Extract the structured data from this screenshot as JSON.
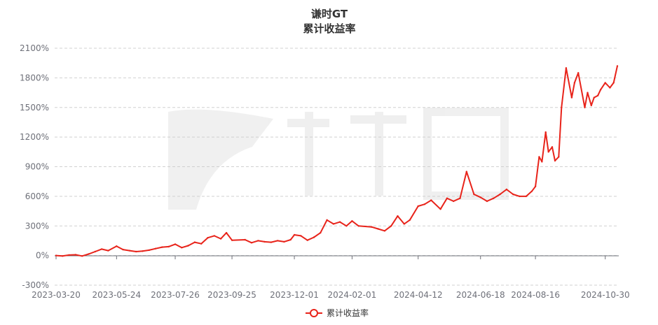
{
  "chart_data": {
    "type": "line",
    "title": "谦时GT",
    "subtitle": "累计收益率",
    "y_axis": {
      "min": -300,
      "max": 2100,
      "interval": 300,
      "ticks": [
        "-300%",
        "0%",
        "300%",
        "600%",
        "900%",
        "1200%",
        "1500%",
        "1800%",
        "2100%"
      ],
      "grid": "dashed"
    },
    "x_axis": {
      "ticks": [
        "2023-03-20",
        "2023-05-24",
        "2023-07-26",
        "2023-09-25",
        "2023-12-01",
        "2024-02-01",
        "2024-04-12",
        "2024-06-18",
        "2024-08-16",
        "2024-10-30"
      ]
    },
    "legend": {
      "position": "bottom-center"
    },
    "series": [
      {
        "name": "累计收益率",
        "color": "#e8231a",
        "x": [
          "2023-03-20",
          "2023-03-27",
          "2023-04-03",
          "2023-04-10",
          "2023-04-17",
          "2023-04-24",
          "2023-05-01",
          "2023-05-08",
          "2023-05-15",
          "2023-05-24",
          "2023-05-31",
          "2023-06-07",
          "2023-06-14",
          "2023-06-21",
          "2023-06-28",
          "2023-07-05",
          "2023-07-12",
          "2023-07-19",
          "2023-07-26",
          "2023-08-02",
          "2023-08-09",
          "2023-08-16",
          "2023-08-23",
          "2023-08-30",
          "2023-09-06",
          "2023-09-13",
          "2023-09-19",
          "2023-09-25",
          "2023-10-09",
          "2023-10-16",
          "2023-10-23",
          "2023-10-30",
          "2023-11-06",
          "2023-11-13",
          "2023-11-20",
          "2023-11-27",
          "2023-12-01",
          "2023-12-08",
          "2023-12-15",
          "2023-12-22",
          "2023-12-29",
          "2024-01-05",
          "2024-01-12",
          "2024-01-19",
          "2024-01-26",
          "2024-02-01",
          "2024-02-08",
          "2024-02-22",
          "2024-02-29",
          "2024-03-07",
          "2024-03-14",
          "2024-03-21",
          "2024-03-28",
          "2024-04-03",
          "2024-04-12",
          "2024-04-19",
          "2024-04-26",
          "2024-05-06",
          "2024-05-13",
          "2024-05-20",
          "2024-05-27",
          "2024-06-03",
          "2024-06-11",
          "2024-06-18",
          "2024-06-25",
          "2024-07-02",
          "2024-07-09",
          "2024-07-16",
          "2024-07-23",
          "2024-07-30",
          "2024-08-06",
          "2024-08-12",
          "2024-08-16",
          "2024-08-20",
          "2024-08-23",
          "2024-08-27",
          "2024-08-30",
          "2024-09-03",
          "2024-09-06",
          "2024-09-10",
          "2024-09-13",
          "2024-09-18",
          "2024-09-24",
          "2024-09-27",
          "2024-10-01",
          "2024-10-08",
          "2024-10-11",
          "2024-10-15",
          "2024-10-18",
          "2024-10-22",
          "2024-10-25",
          "2024-10-30",
          "2024-11-04",
          "2024-11-08",
          "2024-11-12"
        ],
        "values": [
          0,
          -5,
          5,
          8,
          -5,
          15,
          40,
          65,
          50,
          95,
          60,
          50,
          40,
          45,
          55,
          70,
          85,
          90,
          115,
          80,
          100,
          135,
          120,
          180,
          200,
          170,
          230,
          155,
          160,
          130,
          150,
          140,
          135,
          150,
          140,
          160,
          210,
          200,
          155,
          185,
          230,
          360,
          320,
          340,
          300,
          350,
          300,
          290,
          270,
          250,
          300,
          400,
          320,
          360,
          500,
          520,
          560,
          470,
          580,
          550,
          580,
          850,
          620,
          590,
          550,
          580,
          620,
          670,
          620,
          600,
          600,
          650,
          700,
          1000,
          950,
          1250,
          1050,
          1100,
          960,
          1000,
          1500,
          1900,
          1600,
          1750,
          1850,
          1500,
          1650,
          1520,
          1600,
          1620,
          1680,
          1750,
          1700,
          1750,
          1920
        ]
      }
    ]
  }
}
